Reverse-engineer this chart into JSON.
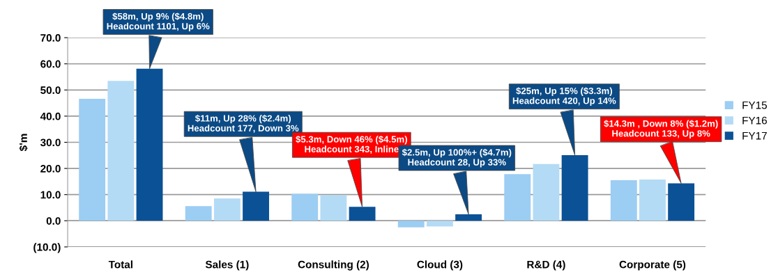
{
  "chart_data": {
    "type": "bar",
    "ylabel": "$'m",
    "categories": [
      "Total",
      "Sales (1)",
      "Consulting (2)",
      "Cloud (3)",
      "R&D (4)",
      "Corporate (5)"
    ],
    "series": [
      {
        "name": "FY15",
        "color": "#9ccdf3",
        "values": [
          46.6,
          5.6,
          10.3,
          -2.5,
          17.8,
          15.5
        ]
      },
      {
        "name": "FY16",
        "color": "#b4dbf5",
        "values": [
          53.5,
          8.5,
          9.8,
          -2.2,
          21.7,
          15.8
        ]
      },
      {
        "name": "FY17",
        "color": "#0b5195",
        "values": [
          58.1,
          11.1,
          5.3,
          2.5,
          25.1,
          14.3
        ]
      }
    ],
    "annotations": [
      "$58m, Up 9% ($4.8m)\nHeadcount 1101, Up 6%",
      "$11m, Up 28% ($2.4m)\nHeadcount 177, Down 3%",
      "$5.3m, Down 46% ($4.5m)\nHeadcount 343, Inline",
      "$2.5m, Up 100%+ ($4.7m)\nHeadcount 28, Up 33%",
      "$25m, Up 15% ($3.3m)\nHeadcount 420, Up 14%",
      "$14.3m , Down 8% ($1.2m)\nHeadcount 133, Up 8%"
    ],
    "ylim": [
      -10,
      70
    ],
    "yticks": [
      {
        "value": -10,
        "label": "(10.0)"
      },
      {
        "value": 0,
        "label": "0.0"
      },
      {
        "value": 10,
        "label": "10.0"
      },
      {
        "value": 20,
        "label": "20.0"
      },
      {
        "value": 30,
        "label": "30.0"
      },
      {
        "value": 40,
        "label": "40.0"
      },
      {
        "value": 50,
        "label": "50.0"
      },
      {
        "value": 60,
        "label": "60.0"
      },
      {
        "value": 70,
        "label": "70.0"
      }
    ],
    "grid": "y",
    "legend": "right"
  }
}
